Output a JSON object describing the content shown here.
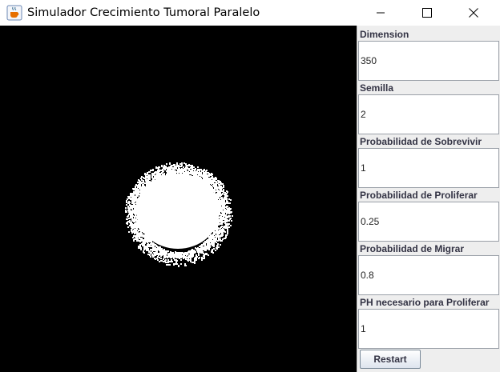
{
  "window": {
    "title": "Simulador Crecimiento Tumoral Paralelo",
    "app_icon": "java-coffee-cup-icon",
    "controls": [
      "minimize-icon",
      "maximize-icon",
      "close-icon"
    ]
  },
  "simulation": {
    "background_color": "#000000",
    "cell_color": "#ffffff"
  },
  "panel": {
    "fields": [
      {
        "label": "Dimension",
        "value": "350"
      },
      {
        "label": "Semilla",
        "value": "2"
      },
      {
        "label": "Probabilidad de Sobrevivir",
        "value": "1"
      },
      {
        "label": "Probabilidad de Proliferar",
        "value": "0.25"
      },
      {
        "label": "Probabilidad de Migrar",
        "value": "0.8"
      },
      {
        "label": "PH necesario para Proliferar",
        "value": "1"
      }
    ],
    "restart_label": "Restart"
  }
}
